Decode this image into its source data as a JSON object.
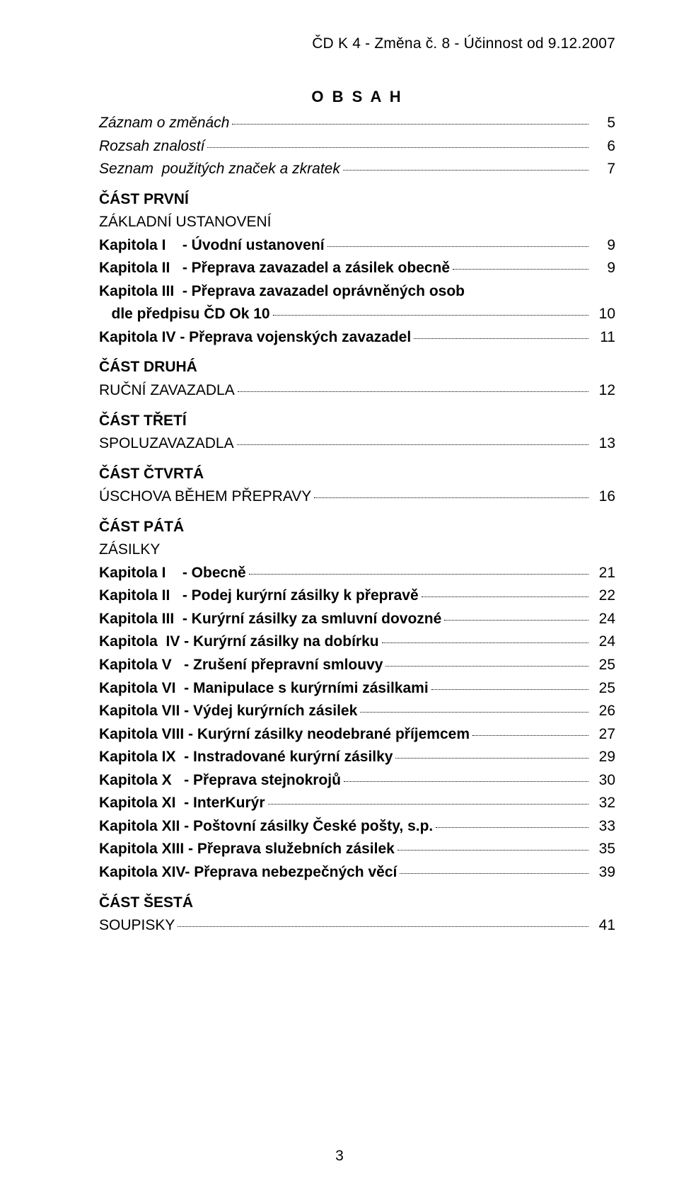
{
  "header": "ČD K 4 - Změna č. 8 - Účinnost od 9.12.2007",
  "title": "O B S A H",
  "page_number": "3",
  "entries": [
    {
      "label": "Záznam o změnách",
      "page": "5",
      "style": "italic"
    },
    {
      "label": "Rozsah znalostí",
      "page": "6",
      "style": "italic"
    },
    {
      "label": "Seznam  použitých značek a zkratek",
      "page": "7",
      "style": "italic"
    },
    {
      "label": "ČÁST PRVNÍ",
      "page": "",
      "style": "bold",
      "noLeader": true,
      "spacer": true
    },
    {
      "label": "ZÁKLADNÍ USTANOVENÍ",
      "page": "",
      "style": "",
      "noLeader": true
    },
    {
      "label": "Kapitola I    - Úvodní ustanovení",
      "page": "9",
      "style": "bold"
    },
    {
      "label": "Kapitola II   - Přeprava zavazadel a zásilek obecně",
      "page": "9",
      "style": "bold"
    },
    {
      "label": "Kapitola III  - Přeprava zavazadel oprávněných osob",
      "page": "",
      "style": "bold",
      "noLeader": true
    },
    {
      "label": "   dle předpisu ČD Ok 10",
      "page": "10",
      "style": "bold"
    },
    {
      "label": "Kapitola IV - Přeprava vojenských zavazadel",
      "page": "11",
      "style": "bold"
    },
    {
      "label": "ČÁST DRUHÁ",
      "page": "",
      "style": "bold",
      "noLeader": true,
      "spacer": true
    },
    {
      "label": "RUČNÍ ZAVAZADLA",
      "page": "12",
      "style": ""
    },
    {
      "label": "ČÁST TŘETÍ",
      "page": "",
      "style": "bold",
      "noLeader": true,
      "spacer": true
    },
    {
      "label": "SPOLUZAVAZADLA",
      "page": "13",
      "style": ""
    },
    {
      "label": "ČÁST ČTVRTÁ",
      "page": "",
      "style": "bold",
      "noLeader": true,
      "spacer": true
    },
    {
      "label": "ÚSCHOVA BĚHEM PŘEPRAVY",
      "page": "16",
      "style": ""
    },
    {
      "label": "ČÁST PÁTÁ",
      "page": "",
      "style": "bold",
      "noLeader": true,
      "spacer": true
    },
    {
      "label": "ZÁSILKY",
      "page": "",
      "style": "",
      "noLeader": true
    },
    {
      "label": "Kapitola I    - Obecně",
      "page": "21",
      "style": "bold"
    },
    {
      "label": "Kapitola II   - Podej kurýrní zásilky k přepravě",
      "page": "22",
      "style": "bold"
    },
    {
      "label": "Kapitola III  - Kurýrní zásilky za smluvní dovozné",
      "page": "24",
      "style": "bold"
    },
    {
      "label": "Kapitola  IV - Kurýrní zásilky na dobírku",
      "page": "24",
      "style": "bold"
    },
    {
      "label": "Kapitola V   - Zrušení přepravní smlouvy",
      "page": "25",
      "style": "bold"
    },
    {
      "label": "Kapitola VI  - Manipulace s kurýrními zásilkami",
      "page": "25",
      "style": "bold"
    },
    {
      "label": "Kapitola VII - Výdej kurýrních zásilek",
      "page": "26",
      "style": "bold"
    },
    {
      "label": "Kapitola VIII - Kurýrní zásilky neodebrané příjemcem",
      "page": "27",
      "style": "bold"
    },
    {
      "label": "Kapitola IX  - Instradované kurýrní zásilky",
      "page": "29",
      "style": "bold"
    },
    {
      "label": "Kapitola X   - Přeprava stejnokrojů",
      "page": "30",
      "style": "bold"
    },
    {
      "label": "Kapitola XI  - InterKurýr",
      "page": "32",
      "style": "bold"
    },
    {
      "label": "Kapitola XII - Poštovní zásilky České pošty, s.p.",
      "page": "33",
      "style": "bold"
    },
    {
      "label": "Kapitola XIII - Přeprava služebních zásilek",
      "page": "35",
      "style": "bold"
    },
    {
      "label": "Kapitola XIV- Přeprava nebezpečných věcí",
      "page": "39",
      "style": "bold"
    },
    {
      "label": "ČÁST ŠESTÁ",
      "page": "",
      "style": "bold",
      "noLeader": true,
      "spacer": true
    },
    {
      "label": "SOUPISKY",
      "page": "41",
      "style": ""
    }
  ]
}
